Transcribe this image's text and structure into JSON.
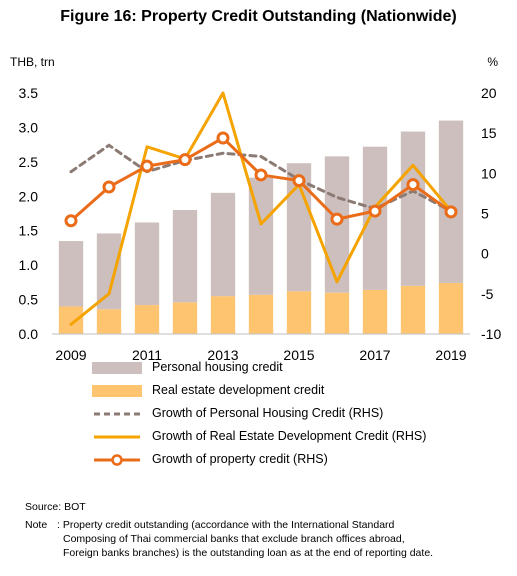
{
  "title": "Figure 16: Property Credit Outstanding (Nationwide)",
  "chart_data": {
    "type": "bar",
    "x": [
      2009,
      2010,
      2011,
      2012,
      2013,
      2014,
      2015,
      2016,
      2017,
      2018,
      2019
    ],
    "x_tick_labels": [
      "2009",
      "2011",
      "2013",
      "2015",
      "2017",
      "2019"
    ],
    "left_axis": {
      "label": "THB, trn",
      "ylim": [
        0,
        3.5
      ],
      "ticks": [
        "0.0",
        "0.5",
        "1.0",
        "1.5",
        "2.0",
        "2.5",
        "3.0",
        "3.5"
      ]
    },
    "right_axis": {
      "label": "%",
      "ylim": [
        -10,
        20
      ],
      "ticks": [
        "-10",
        "-5",
        "0",
        "5",
        "10",
        "15",
        "20"
      ]
    },
    "grid": false,
    "legend_position": "bottom",
    "series": [
      {
        "name": "Personal housing credit",
        "type": "bar",
        "stacked": true,
        "axis": "left",
        "color": "#ccbfbd",
        "values": [
          0.95,
          1.1,
          1.2,
          1.34,
          1.5,
          1.7,
          1.86,
          1.98,
          2.08,
          2.24,
          2.36
        ]
      },
      {
        "name": "Real estate development credit",
        "type": "bar",
        "stacked": true,
        "axis": "left",
        "color": "#ffc46f",
        "values": [
          0.4,
          0.36,
          0.42,
          0.46,
          0.55,
          0.57,
          0.62,
          0.6,
          0.64,
          0.7,
          0.74
        ]
      },
      {
        "name": "Growth of Personal Housing Credit (RHS)",
        "type": "line",
        "axis": "right",
        "color": "#8c7b75",
        "dash": true,
        "values": [
          10.2,
          13.5,
          10.2,
          11.6,
          12.5,
          12.1,
          9.2,
          7.0,
          5.6,
          7.8,
          5.3
        ]
      },
      {
        "name": "Growth of Real Estate Development Credit (RHS)",
        "type": "line",
        "axis": "right",
        "color": "#f5a300",
        "values": [
          -8.8,
          -5.0,
          13.3,
          11.8,
          20.0,
          3.7,
          8.6,
          -3.5,
          5.8,
          11.0,
          5.3
        ]
      },
      {
        "name": "Growth of property credit (RHS)",
        "type": "line",
        "axis": "right",
        "color": "#ea6b18",
        "markers": true,
        "values": [
          4.1,
          8.3,
          10.9,
          11.7,
          14.4,
          9.8,
          9.1,
          4.3,
          5.3,
          8.6,
          5.2
        ]
      }
    ]
  },
  "legend": {
    "items": [
      "Personal housing credit",
      "Real estate development credit",
      "Growth of Personal Housing Credit (RHS)",
      "Growth of Real Estate Development Credit (RHS)",
      "Growth of property credit (RHS)"
    ]
  },
  "footnotes": {
    "source": "Source: BOT",
    "note_label": "Note",
    "note_lines": [
      ": Property credit outstanding (accordance with the International Standard",
      "Composing of Thai commercial banks that exclude branch offices abroad,",
      "Foreign banks branches) is the outstanding loan as at the end of reporting date."
    ]
  }
}
